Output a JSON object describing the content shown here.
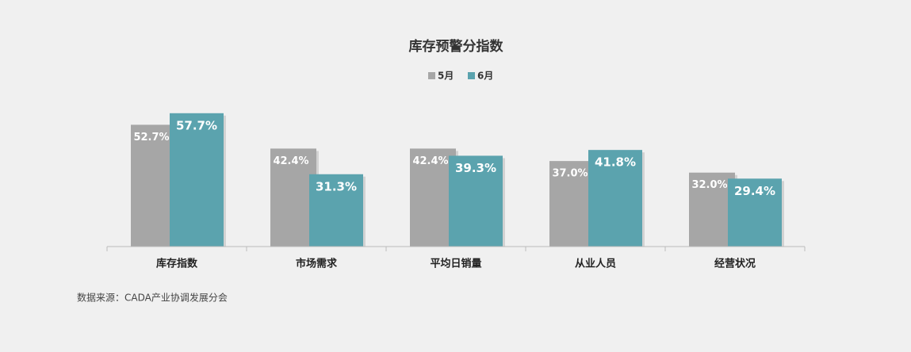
{
  "chart_data": {
    "type": "bar",
    "title": "库存预警分指数",
    "categories": [
      "库存指数",
      "市场需求",
      "平均日销量",
      "从业人员",
      "经营状况"
    ],
    "series": [
      {
        "name": "5月",
        "color": "#a6a6a6",
        "values": [
          52.7,
          42.4,
          42.4,
          37.0,
          32.0
        ],
        "value_labels": [
          "52.7%",
          "42.4%",
          "42.4%",
          "37.0%",
          "32.0%"
        ]
      },
      {
        "name": "6月",
        "color": "#5ba3ae",
        "values": [
          57.7,
          31.3,
          39.3,
          41.8,
          29.4
        ],
        "value_labels": [
          "57.7%",
          "31.3%",
          "39.3%",
          "41.8%",
          "29.4%"
        ]
      }
    ],
    "source": "数据来源：CADA产业协调发展分会"
  }
}
